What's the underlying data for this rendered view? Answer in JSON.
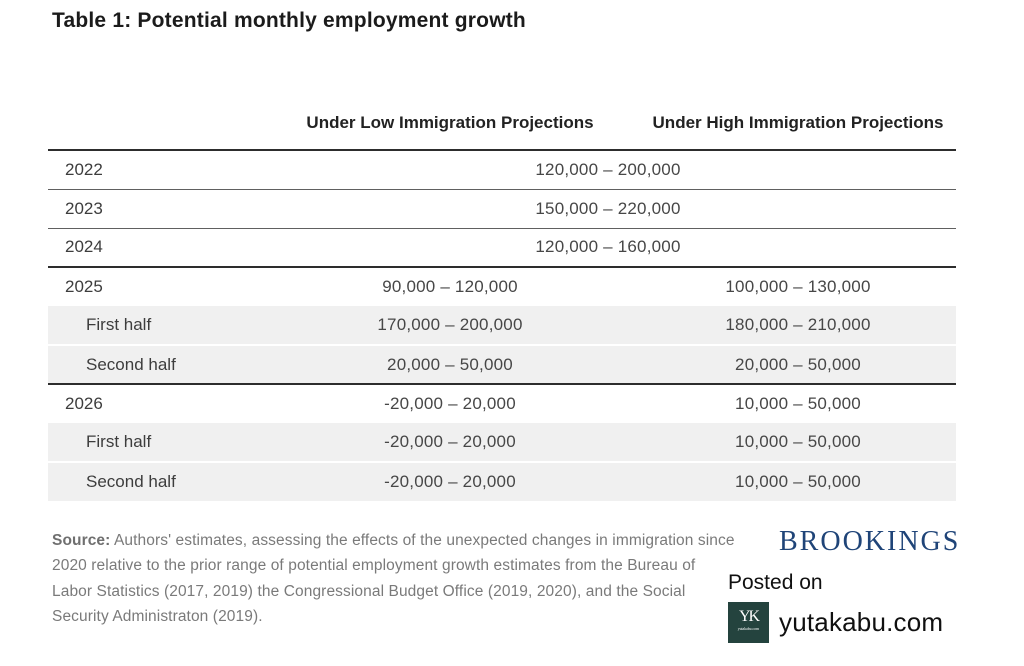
{
  "chart_data": {
    "type": "table",
    "title": "Table 1: Potential monthly employment growth",
    "columns": [
      "",
      "Under Low Immigration Projections",
      "Under High Immigration Projections"
    ],
    "rows": [
      {
        "label": "2022",
        "indent": false,
        "merged": true,
        "value": "120,000 – 200,000"
      },
      {
        "label": "2023",
        "indent": false,
        "merged": true,
        "value": "150,000 – 220,000"
      },
      {
        "label": "2024",
        "indent": false,
        "merged": true,
        "value": "120,000 – 160,000"
      },
      {
        "label": "2025",
        "indent": false,
        "merged": false,
        "low": "90,000 – 120,000",
        "high": "100,000 – 130,000"
      },
      {
        "label": "First half",
        "indent": true,
        "merged": false,
        "low": "170,000 – 200,000",
        "high": "180,000 – 210,000"
      },
      {
        "label": "Second half",
        "indent": true,
        "merged": false,
        "low": "20,000 – 50,000",
        "high": "20,000 – 50,000"
      },
      {
        "label": "2026",
        "indent": false,
        "merged": false,
        "low": "-20,000 – 20,000",
        "high": "10,000 – 50,000"
      },
      {
        "label": "First half",
        "indent": true,
        "merged": false,
        "low": "-20,000 – 20,000",
        "high": "10,000 – 50,000"
      },
      {
        "label": "Second half",
        "indent": true,
        "merged": false,
        "low": "-20,000 – 20,000",
        "high": "10,000 – 50,000"
      }
    ],
    "layout": {
      "grid": "horizontal-rules-only",
      "shaded_subrows": true
    }
  },
  "footer": {
    "source_label": "Source:",
    "source_text": " Authors' estimates, assessing the effects of the unexpected changes in immigration since 2020 relative to the prior range of potential employment growth estimates from the Bureau of Labor Statistics (2017, 2019) the Congressional Budget Office (2019, 2020), and the Social Security Administraton (2019).",
    "brookings_logo": "BROOKINGS"
  },
  "watermark": {
    "posted_on": "Posted on",
    "site_name": "yutakabu.com",
    "icon_monogram": "YK",
    "icon_caption": "yutakabu.com"
  },
  "colors": {
    "brookings_navy": "#1f4478",
    "watermark_icon_teal": "#24433e",
    "shaded_row_gray": "#f0f0f0",
    "rule_dark": "#2d2d2d",
    "rule_light": "#606060",
    "title_text": "#1b1b1b",
    "body_text": "#474747",
    "source_text": "#7a7a7a"
  }
}
